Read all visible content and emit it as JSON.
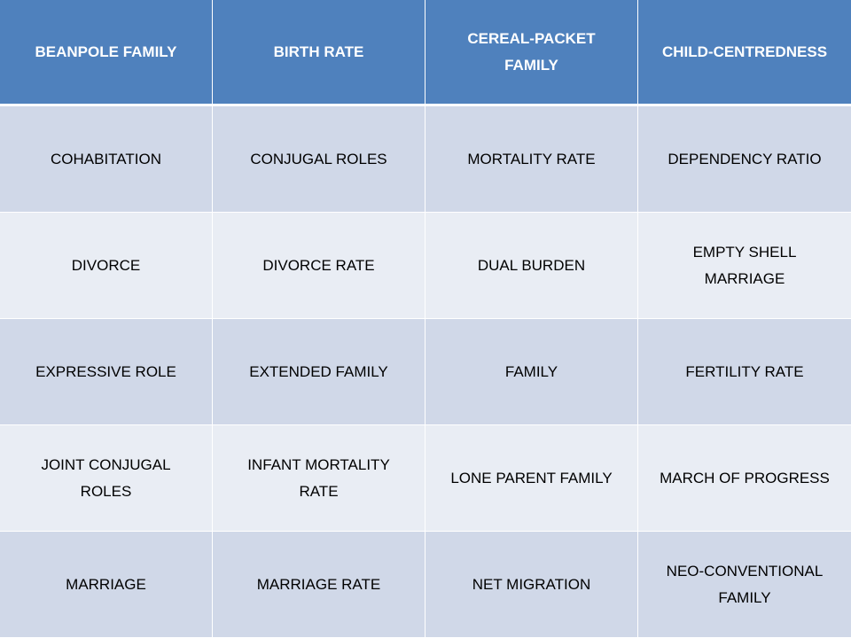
{
  "table": {
    "header": [
      "BEANPOLE FAMILY",
      "BIRTH RATE",
      "CEREAL-PACKET FAMILY",
      "CHILD-CENTREDNESS"
    ],
    "rows": [
      [
        "COHABITATION",
        "CONJUGAL ROLES",
        "MORTALITY RATE",
        "DEPENDENCY RATIO"
      ],
      [
        "DIVORCE",
        "DIVORCE RATE",
        "DUAL BURDEN",
        "EMPTY SHELL MARRIAGE"
      ],
      [
        "EXPRESSIVE ROLE",
        "EXTENDED FAMILY",
        "FAMILY",
        "FERTILITY RATE"
      ],
      [
        "JOINT CONJUGAL ROLES",
        "INFANT MORTALITY RATE",
        "LONE PARENT FAMILY",
        "MARCH OF PROGRESS"
      ],
      [
        "MARRIAGE",
        "MARRIAGE RATE",
        "NET MIGRATION",
        "NEO-CONVENTIONAL FAMILY"
      ]
    ]
  },
  "colors": {
    "header_bg": "#4f81bd",
    "row_dark": "#d0d8e8",
    "row_light": "#e9edf4"
  }
}
